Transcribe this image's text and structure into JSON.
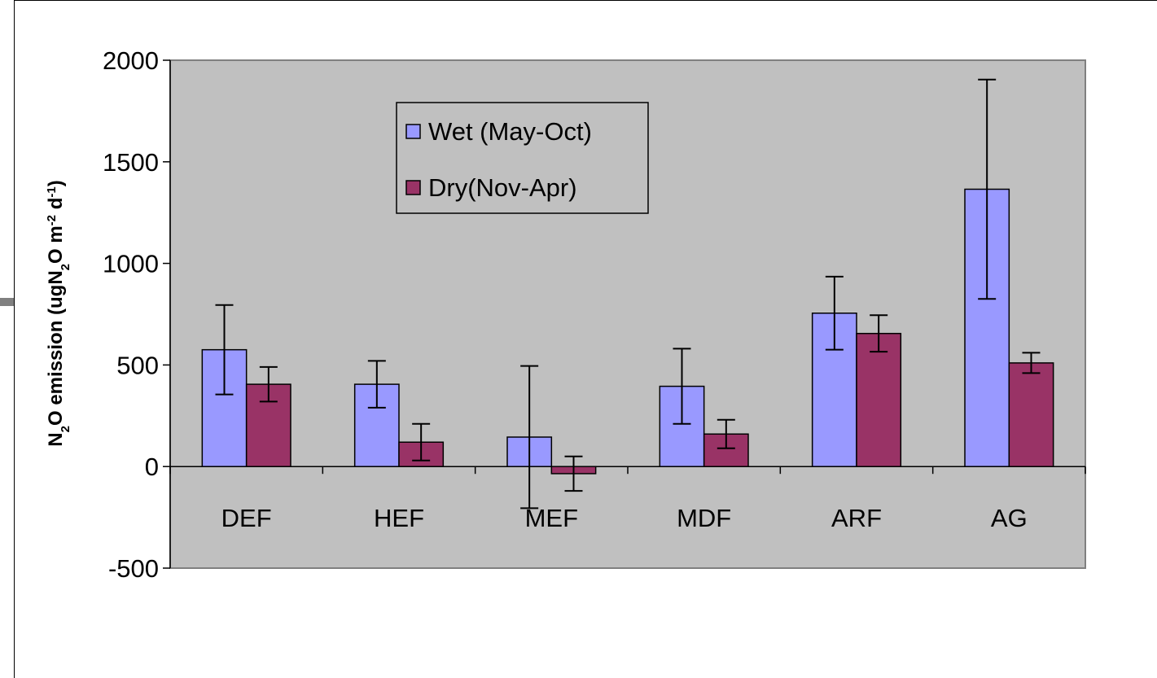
{
  "chart_data": {
    "type": "bar",
    "title": "",
    "xlabel": "",
    "ylabel": {
      "parts": [
        {
          "text": "N",
          "sub": false,
          "sup": false
        },
        {
          "text": "2",
          "sub": true,
          "sup": false
        },
        {
          "text": "O emission (ugN",
          "sub": false,
          "sup": false
        },
        {
          "text": "2",
          "sub": true,
          "sup": false
        },
        {
          "text": "O m",
          "sub": false,
          "sup": false
        },
        {
          "text": "-2",
          "sub": false,
          "sup": true
        },
        {
          "text": " d",
          "sub": false,
          "sup": false
        },
        {
          "text": "-1",
          "sub": false,
          "sup": true
        },
        {
          "text": ")",
          "sub": false,
          "sup": false
        }
      ]
    },
    "ylim": [
      -500,
      2000
    ],
    "yticks": [
      -500,
      0,
      500,
      1000,
      1500,
      2000
    ],
    "categories": [
      "DEF",
      "HEF",
      "MEF",
      "MDF",
      "ARF",
      "AG"
    ],
    "series": [
      {
        "name": "Wet (May-Oct)",
        "color": "#9999ff",
        "values": [
          575,
          405,
          145,
          395,
          755,
          1365
        ],
        "errors": [
          220,
          115,
          350,
          185,
          180,
          540
        ]
      },
      {
        "name": "Dry(Nov-Apr)",
        "color": "#993366",
        "values": [
          405,
          120,
          -35,
          160,
          655,
          510
        ],
        "errors": [
          85,
          90,
          85,
          70,
          90,
          50
        ]
      }
    ],
    "grid": false,
    "plot_background": "#c0c0c0",
    "legend_position": "top-center"
  }
}
